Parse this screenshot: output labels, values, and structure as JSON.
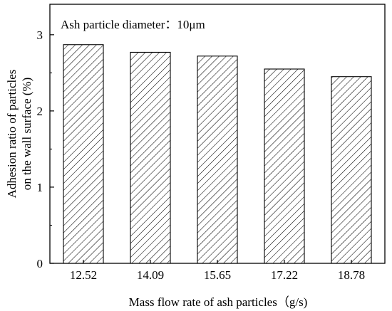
{
  "chart_data": {
    "type": "bar",
    "annotation": "Ash particle diameter：10μm",
    "xlabel": "Mass flow rate of ash particles（g/s)",
    "ylabel_lines": [
      "Adhesion ratio of particles",
      "on the wall surface (%)"
    ],
    "categories": [
      "12.52",
      "14.09",
      "15.65",
      "17.22",
      "18.78"
    ],
    "values": [
      2.87,
      2.77,
      2.72,
      2.55,
      2.45
    ],
    "ylim": [
      0,
      3.4
    ],
    "yticks": [
      0,
      1,
      2,
      3
    ],
    "ytick_labels": [
      "0",
      "1",
      "2",
      "3"
    ],
    "bar_fill": "hatched",
    "grid": false,
    "legend": "none"
  }
}
